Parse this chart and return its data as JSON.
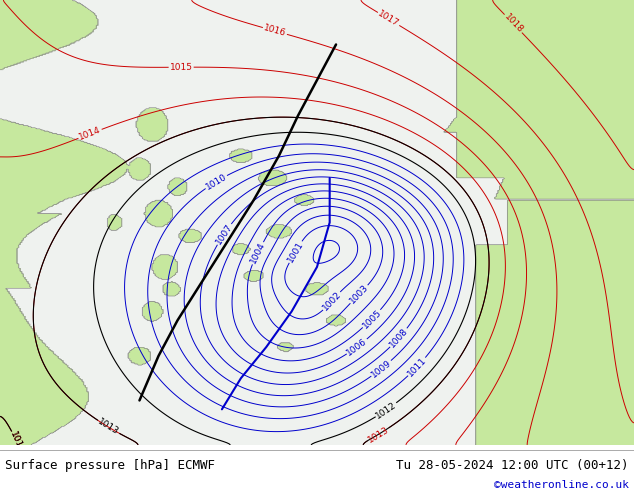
{
  "title_left": "Surface pressure [hPa] ECMWF",
  "title_right": "Tu 28-05-2024 12:00 UTC (00+12)",
  "copyright": "©weatheronline.co.uk",
  "copyright_color": "#0000cc",
  "bg_color": "#ffffff",
  "land_color_rgba": [
    0.78,
    0.91,
    0.62,
    1.0
  ],
  "sea_color_rgba": [
    0.93,
    0.95,
    0.95,
    1.0
  ],
  "red_color": "#cc0000",
  "black_color": "#000000",
  "blue_color": "#0000cc",
  "label_fontsize": 6.5,
  "footer_fontsize": 9,
  "copyright_fontsize": 8,
  "figsize": [
    6.34,
    4.9
  ],
  "dpi": 100
}
